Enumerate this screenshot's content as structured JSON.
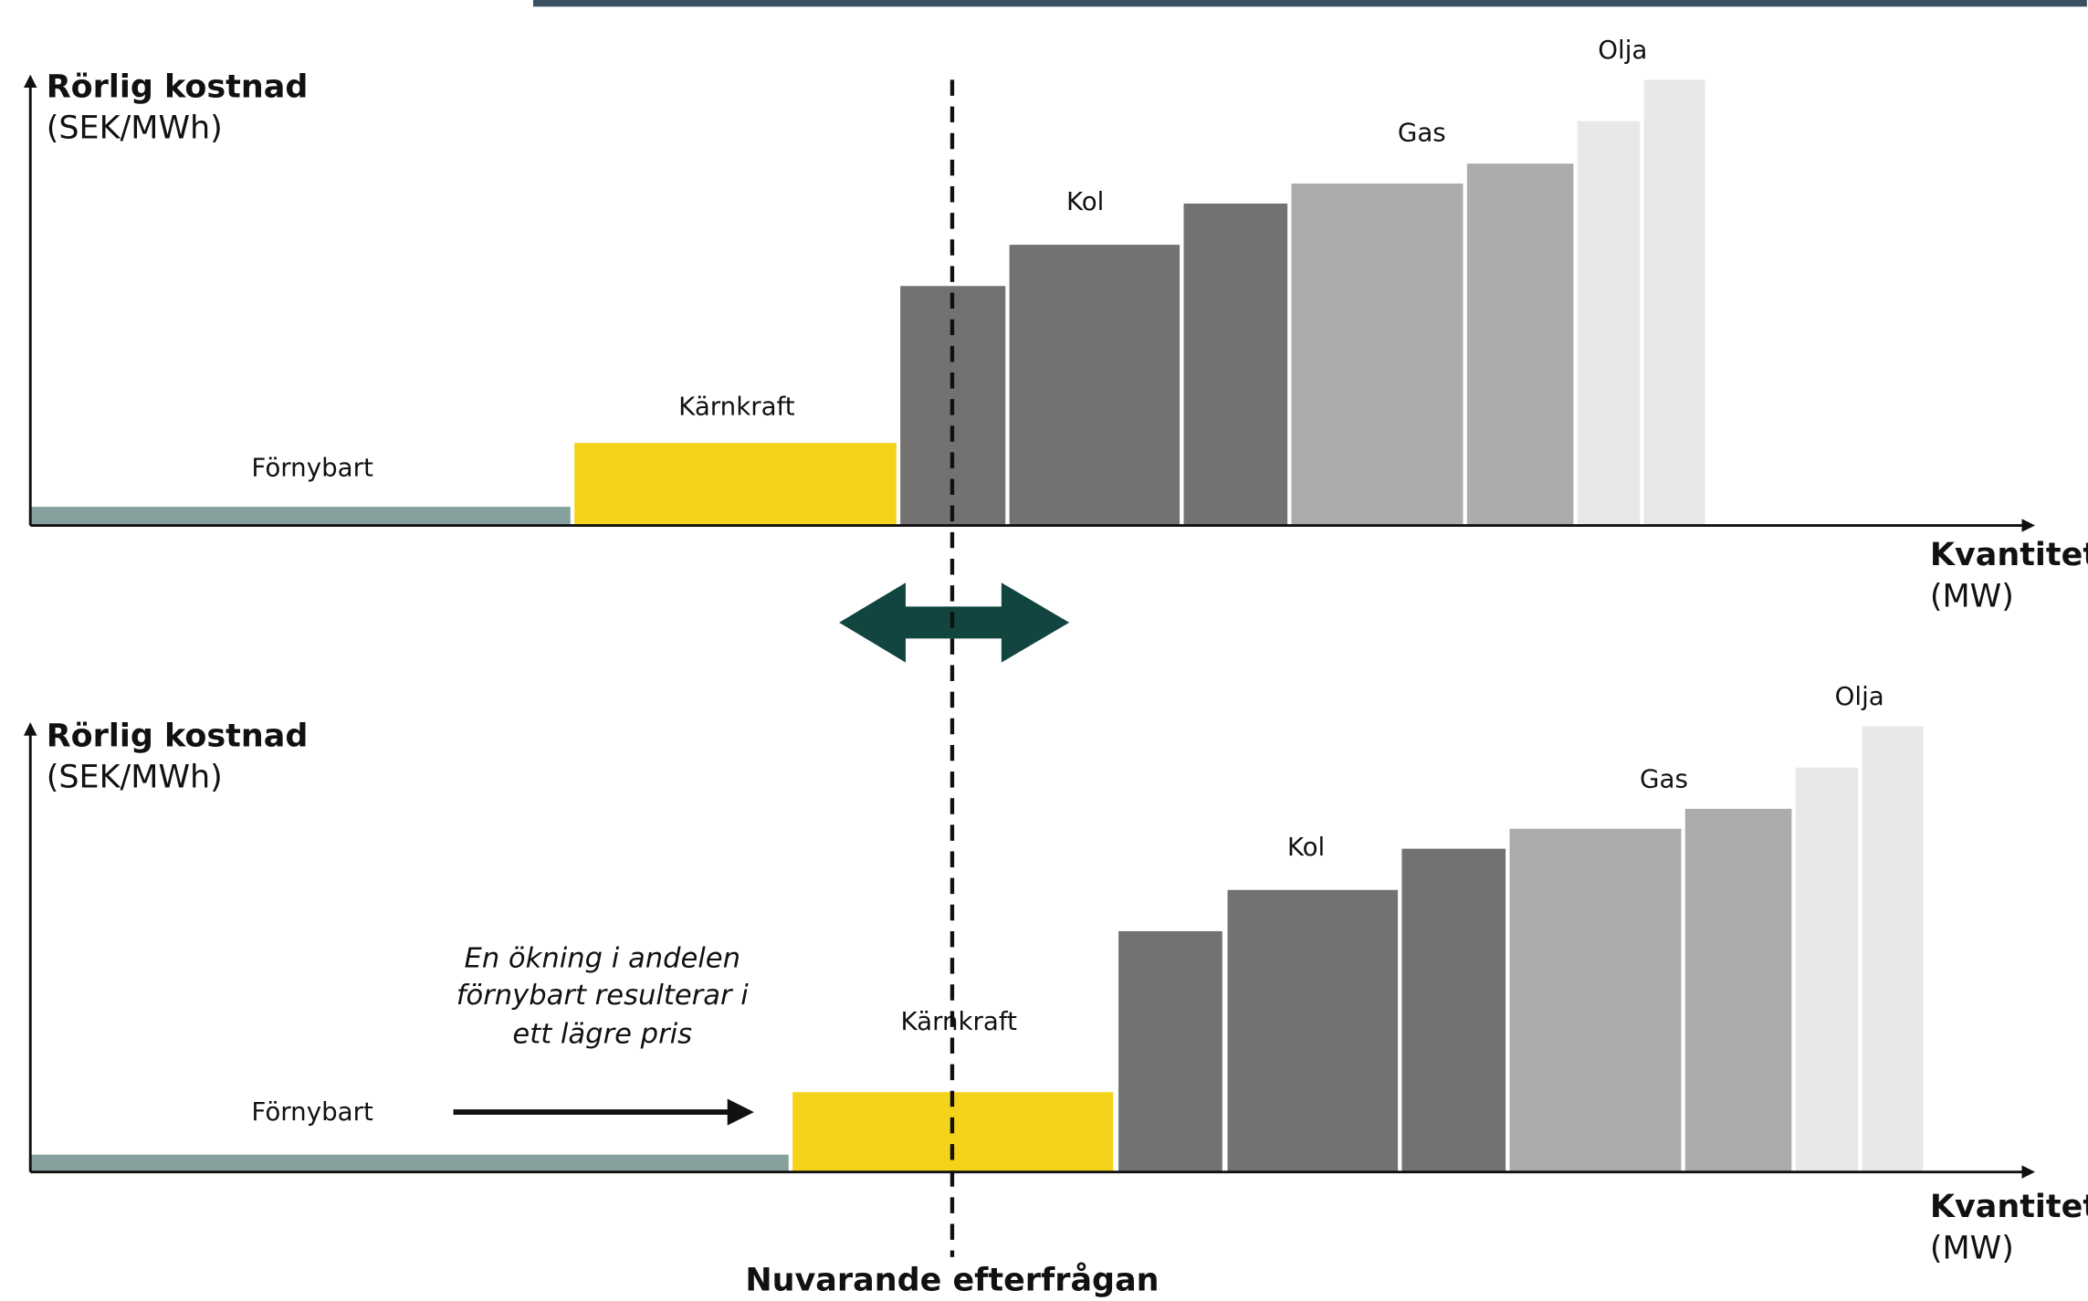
{
  "top_panel": {
    "y_axis_label": [
      "Rörlig kostnad",
      "(SEK/MWh)"
    ],
    "x_axis_label": [
      "Kvantitet",
      "(MW)"
    ],
    "segments": [
      "Förnybart",
      "Kärnkraft",
      "Kol",
      "Gas",
      "Olja"
    ]
  },
  "bottom_panel": {
    "y_axis_label": [
      "Rörlig kostnad",
      "(SEK/MWh)"
    ],
    "x_axis_label": [
      "Kvantitet",
      "(MW)"
    ],
    "segments": [
      "Förnybart",
      "Kärnkraft",
      "Kol",
      "Gas",
      "Olja"
    ],
    "annotation": [
      "En ökning i andelen",
      "förnybart resulterar i",
      "ett lägre pris"
    ]
  },
  "demand_label": "Nuvarande efterfrågan"
}
